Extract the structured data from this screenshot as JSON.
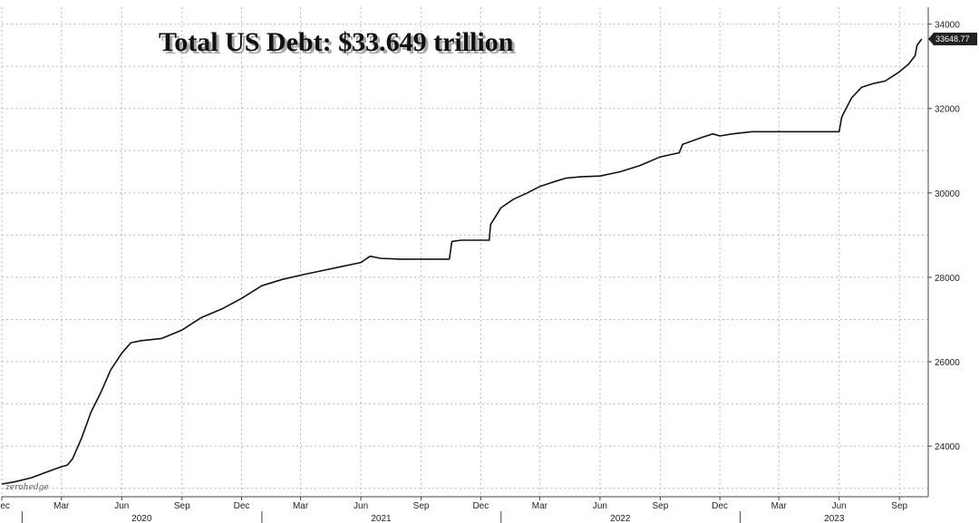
{
  "chart_data": {
    "type": "line",
    "title": "Total US Debt: $33.649 trillion",
    "watermark": "zerohedge",
    "ylim": [
      22800,
      34400
    ],
    "yticks": [
      24000,
      26000,
      28000,
      30000,
      32000,
      34000
    ],
    "ytick_labels": [
      "24000",
      "26000",
      "28000",
      "30000",
      "32000",
      "34000"
    ],
    "last_value_label": "33648.77",
    "grid": true,
    "xlim": [
      "2019-12-01",
      "2023-10-15"
    ],
    "xticks": [
      {
        "date": "2019-12-01",
        "label": "Dec"
      },
      {
        "date": "2020-03-01",
        "label": "Mar"
      },
      {
        "date": "2020-06-01",
        "label": "Jun"
      },
      {
        "date": "2020-09-01",
        "label": "Sep"
      },
      {
        "date": "2020-12-01",
        "label": "Dec"
      },
      {
        "date": "2021-03-01",
        "label": "Mar"
      },
      {
        "date": "2021-06-01",
        "label": "Jun"
      },
      {
        "date": "2021-09-01",
        "label": "Sep"
      },
      {
        "date": "2021-12-01",
        "label": "Dec"
      },
      {
        "date": "2022-03-01",
        "label": "Mar"
      },
      {
        "date": "2022-06-01",
        "label": "Jun"
      },
      {
        "date": "2022-09-01",
        "label": "Sep"
      },
      {
        "date": "2022-12-01",
        "label": "Dec"
      },
      {
        "date": "2023-03-01",
        "label": "Mar"
      },
      {
        "date": "2023-06-01",
        "label": "Jun"
      },
      {
        "date": "2023-09-01",
        "label": "Sep"
      }
    ],
    "year_labels": [
      {
        "year": "2020",
        "from": "2020-01-01",
        "to": "2020-12-31"
      },
      {
        "year": "2021",
        "from": "2021-01-01",
        "to": "2021-12-31"
      },
      {
        "year": "2022",
        "from": "2022-01-01",
        "to": "2022-12-31"
      },
      {
        "year": "2023",
        "from": "2023-01-01",
        "to": "2023-10-15"
      }
    ],
    "series": [
      {
        "values": [
          [
            "2019-12-01",
            23100
          ],
          [
            "2019-12-20",
            23150
          ],
          [
            "2020-01-15",
            23250
          ],
          [
            "2020-02-10",
            23400
          ],
          [
            "2020-02-28",
            23500
          ],
          [
            "2020-03-10",
            23550
          ],
          [
            "2020-03-18",
            23700
          ],
          [
            "2020-04-01",
            24200
          ],
          [
            "2020-04-15",
            24800
          ],
          [
            "2020-05-01",
            25300
          ],
          [
            "2020-05-15",
            25800
          ],
          [
            "2020-06-01",
            26200
          ],
          [
            "2020-06-15",
            26450
          ],
          [
            "2020-07-01",
            26500
          ],
          [
            "2020-08-01",
            26550
          ],
          [
            "2020-09-01",
            26750
          ],
          [
            "2020-10-01",
            27050
          ],
          [
            "2020-11-01",
            27250
          ],
          [
            "2020-12-01",
            27500
          ],
          [
            "2021-01-01",
            27800
          ],
          [
            "2021-02-01",
            27950
          ],
          [
            "2021-03-01",
            28050
          ],
          [
            "2021-04-01",
            28150
          ],
          [
            "2021-05-01",
            28250
          ],
          [
            "2021-06-01",
            28350
          ],
          [
            "2021-06-15",
            28500
          ],
          [
            "2021-07-01",
            28450
          ],
          [
            "2021-07-31",
            28430
          ],
          [
            "2021-08-31",
            28430
          ],
          [
            "2021-09-30",
            28430
          ],
          [
            "2021-10-14",
            28430
          ],
          [
            "2021-10-18",
            28850
          ],
          [
            "2021-11-01",
            28880
          ],
          [
            "2021-11-30",
            28880
          ],
          [
            "2021-12-14",
            28880
          ],
          [
            "2021-12-16",
            29250
          ],
          [
            "2022-01-01",
            29650
          ],
          [
            "2022-01-20",
            29850
          ],
          [
            "2022-02-10",
            30000
          ],
          [
            "2022-03-01",
            30150
          ],
          [
            "2022-03-20",
            30250
          ],
          [
            "2022-04-10",
            30350
          ],
          [
            "2022-05-01",
            30380
          ],
          [
            "2022-06-01",
            30400
          ],
          [
            "2022-07-01",
            30500
          ],
          [
            "2022-08-01",
            30650
          ],
          [
            "2022-08-31",
            30850
          ],
          [
            "2022-09-15",
            30900
          ],
          [
            "2022-09-30",
            30950
          ],
          [
            "2022-10-05",
            31150
          ],
          [
            "2022-11-01",
            31300
          ],
          [
            "2022-11-20",
            31400
          ],
          [
            "2022-12-01",
            31350
          ],
          [
            "2022-12-20",
            31400
          ],
          [
            "2023-01-19",
            31450
          ],
          [
            "2023-02-15",
            31450
          ],
          [
            "2023-03-31",
            31450
          ],
          [
            "2023-05-01",
            31450
          ],
          [
            "2023-06-01",
            31450
          ],
          [
            "2023-06-05",
            31800
          ],
          [
            "2023-06-20",
            32250
          ],
          [
            "2023-07-05",
            32500
          ],
          [
            "2023-07-25",
            32600
          ],
          [
            "2023-08-10",
            32650
          ],
          [
            "2023-08-30",
            32850
          ],
          [
            "2023-09-15",
            33050
          ],
          [
            "2023-09-25",
            33250
          ],
          [
            "2023-09-28",
            33500
          ],
          [
            "2023-10-05",
            33649
          ]
        ]
      }
    ]
  }
}
